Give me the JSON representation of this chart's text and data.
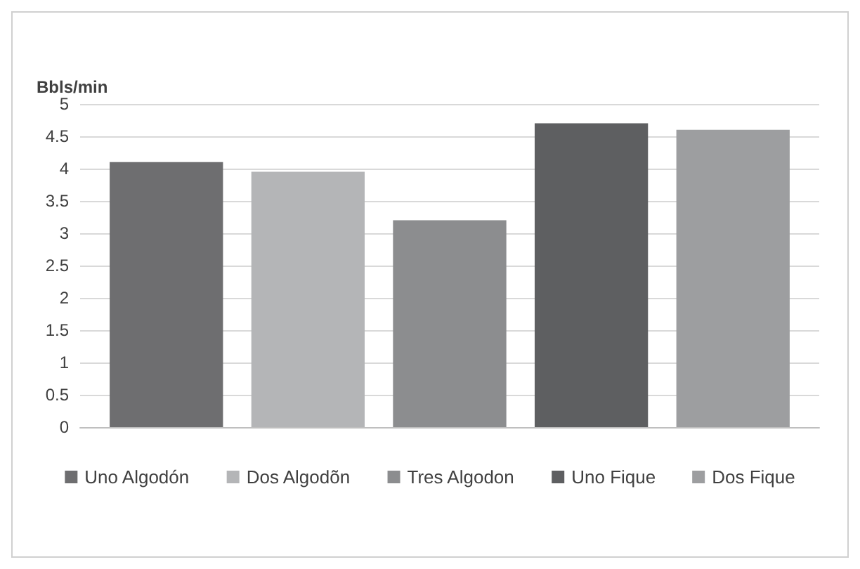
{
  "chart_data": {
    "type": "bar",
    "ylabel": "Bbls/min",
    "categories": [
      null
    ],
    "series": [
      {
        "name": "Uno Algodón",
        "color": "#6e6e70",
        "values": [
          4.1
        ]
      },
      {
        "name": "Dos Algodõn",
        "color": "#b4b5b7",
        "values": [
          3.95
        ]
      },
      {
        "name": "Tres Algodon",
        "color": "#8c8d8f",
        "values": [
          3.2
        ]
      },
      {
        "name": "Uno Fique",
        "color": "#5e5f61",
        "values": [
          4.7
        ]
      },
      {
        "name": "Dos Fique",
        "color": "#9d9ea0",
        "values": [
          4.6
        ]
      }
    ],
    "ylim": [
      0,
      5
    ],
    "yticks": [
      0,
      0.5,
      1,
      1.5,
      2,
      2.5,
      3,
      3.5,
      4,
      4.5,
      5
    ],
    "grid": "y",
    "legend": "bottom"
  }
}
